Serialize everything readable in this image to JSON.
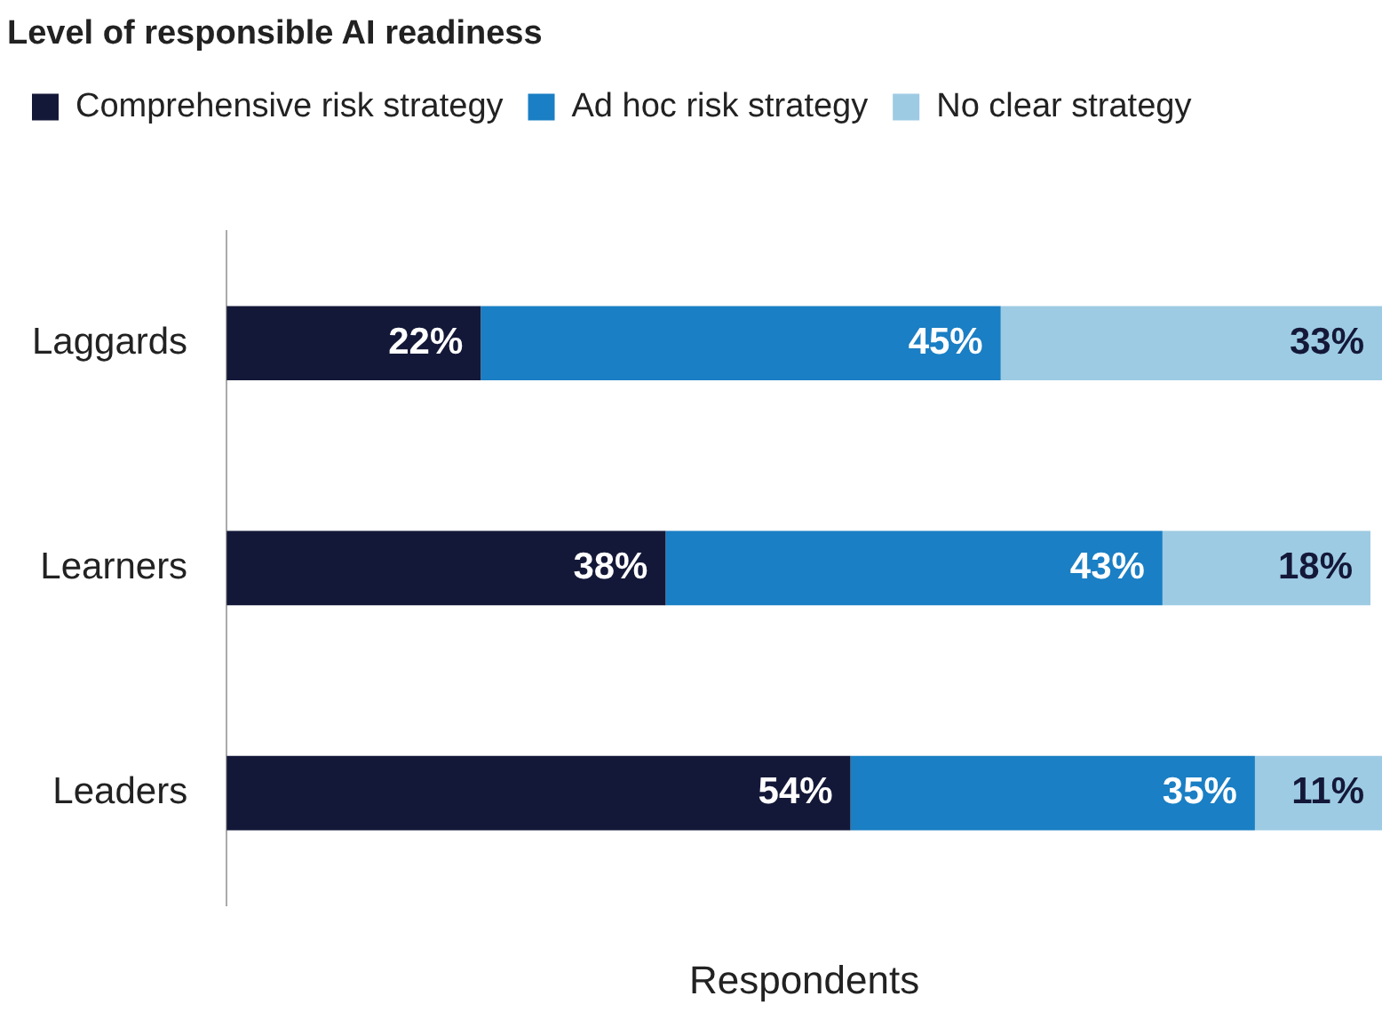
{
  "chart_data": {
    "type": "bar",
    "orientation": "horizontal",
    "stacked": true,
    "title": "Level of responsible AI readiness",
    "xlabel": "Respondents",
    "categories": [
      "Laggards",
      "Learners",
      "Leaders"
    ],
    "series": [
      {
        "name": "Comprehensive risk strategy",
        "color": "#141838",
        "values": [
          22,
          38,
          54
        ],
        "value_labels": [
          "22%",
          "38%",
          "54%"
        ]
      },
      {
        "name": "Ad hoc risk strategy",
        "color": "#1a7fc4",
        "values": [
          45,
          43,
          35
        ],
        "value_labels": [
          "45%",
          "43%",
          "35%"
        ]
      },
      {
        "name": "No clear strategy",
        "color": "#9dcbe3",
        "values": [
          33,
          18,
          11
        ],
        "value_labels": [
          "33%",
          "18%",
          "11%"
        ]
      }
    ],
    "legend": "top left",
    "grid": false
  }
}
